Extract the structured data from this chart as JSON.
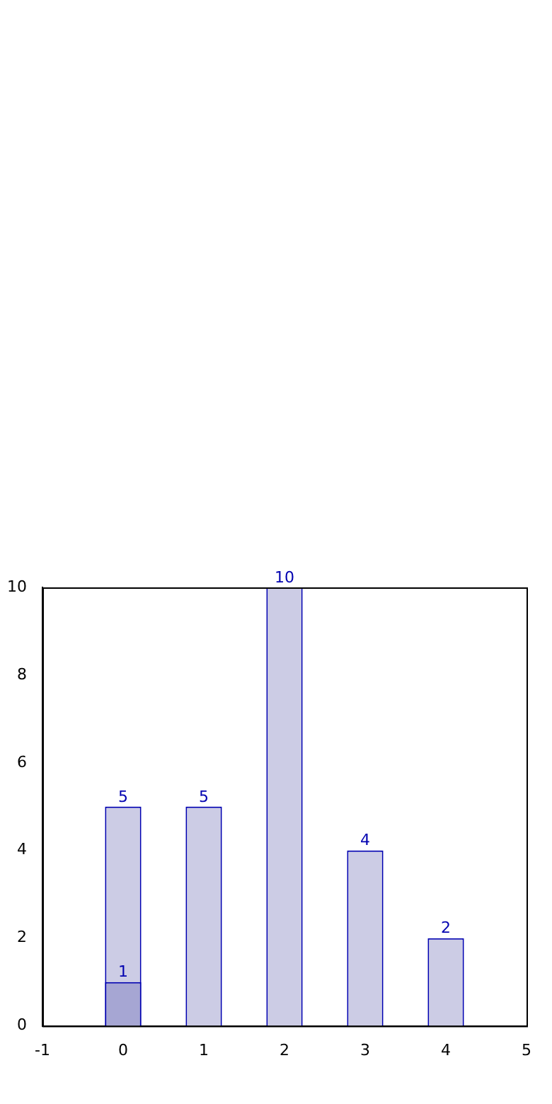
{
  "chart_data": {
    "type": "bar",
    "x": [
      0,
      1,
      2,
      3,
      4
    ],
    "series": [
      {
        "color": "#ccccE5",
        "values": [
          5,
          5,
          10,
          4,
          2
        ]
      },
      {
        "color": "#a6a6d3",
        "values": [
          1,
          null,
          null,
          null,
          null
        ]
      }
    ],
    "xlim": [
      -1,
      5
    ],
    "xticks": [
      -1,
      0,
      1,
      2,
      3,
      4,
      5
    ],
    "ylim": [
      0,
      10
    ],
    "yticks": [
      0,
      2,
      4,
      6,
      8,
      10
    ],
    "data_labels": true,
    "grid": false,
    "legend": false
  }
}
